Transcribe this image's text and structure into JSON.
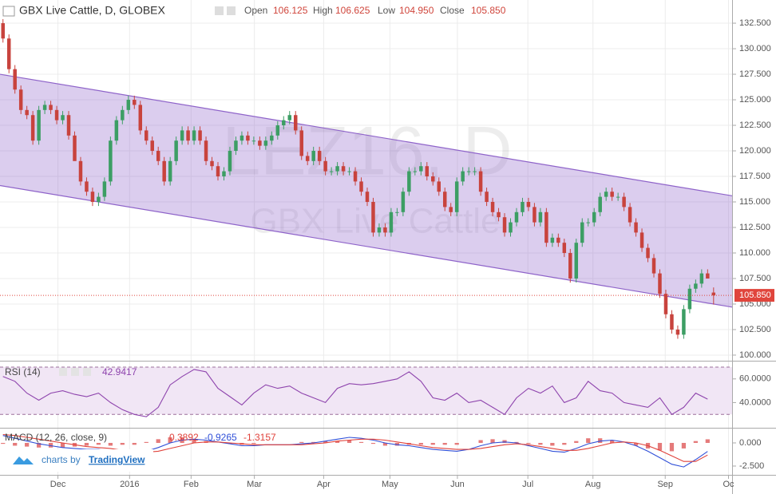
{
  "chart_data": [
    {
      "type": "candlestick",
      "title": "GBX Live Cattle, D, GLOBEX",
      "watermark": [
        "LEZ16, D",
        "GBX Live Cattle"
      ],
      "header_labels": [
        "Open",
        "High",
        "Low",
        "Close"
      ],
      "last_labels": [
        "106.125",
        "106.625",
        "104.950",
        "105.850"
      ],
      "up_color": "#3c9e64",
      "down_color": "#c8433d",
      "open": [
        132.5,
        131,
        128,
        126,
        124,
        123.5,
        121,
        124,
        124.5,
        124,
        123,
        123.5,
        121.5,
        119,
        117,
        116,
        115,
        115.5,
        117,
        121,
        123,
        124,
        125,
        124.5,
        122,
        121,
        120,
        119,
        117,
        119,
        121,
        122,
        121,
        122,
        121,
        119,
        118.5,
        117.5,
        118,
        120,
        121,
        121.5,
        121,
        121,
        120.5,
        121,
        121.5,
        122.5,
        123,
        123.5,
        122,
        119.5,
        119,
        120,
        119,
        118,
        118,
        118.5,
        118,
        118,
        117,
        116,
        115,
        112,
        112.5,
        112,
        114,
        114,
        116,
        118,
        118,
        118.5,
        117.5,
        117,
        116,
        114.5,
        114,
        117,
        118,
        118,
        118,
        116,
        115,
        114,
        113.5,
        112,
        113,
        114,
        115,
        114.5,
        113,
        114,
        111,
        111.5,
        111,
        110,
        107.5,
        111,
        113,
        113,
        114,
        115.5,
        116,
        115.5,
        115.5,
        114.5,
        113,
        112,
        110.5,
        109.5,
        108,
        106,
        104,
        102.5,
        102,
        104.5,
        106.5,
        107,
        108,
        106.125
      ],
      "high": [
        132.9,
        131.4,
        128.4,
        126.4,
        124.4,
        123.9,
        124.4,
        124.9,
        124.9,
        124.4,
        123.9,
        123.9,
        121.9,
        119.4,
        117.4,
        116.4,
        115.9,
        117.4,
        121.4,
        123.4,
        124.4,
        125.4,
        125.4,
        124.9,
        122.4,
        121.4,
        120.4,
        119.4,
        119.4,
        121.4,
        122.4,
        122.4,
        122.4,
        122.4,
        121.4,
        119.4,
        118.9,
        118.4,
        120.4,
        121.4,
        121.9,
        121.9,
        121.4,
        121.4,
        121.4,
        121.9,
        122.9,
        123.4,
        123.9,
        123.9,
        122.4,
        119.9,
        120.4,
        120.4,
        119.4,
        118.4,
        118.9,
        118.9,
        118.4,
        118.4,
        117.4,
        116.4,
        115.4,
        112.9,
        112.9,
        114.4,
        114.4,
        116.4,
        118.4,
        118.4,
        118.9,
        118.9,
        117.9,
        117.4,
        116.4,
        114.9,
        117.4,
        118.4,
        118.4,
        118.4,
        118.4,
        116.4,
        115.4,
        114.4,
        113.9,
        113.4,
        114.4,
        115.4,
        115.4,
        114.9,
        114.4,
        114.4,
        111.9,
        111.9,
        111.4,
        110.4,
        111.4,
        113.4,
        113.4,
        114.4,
        115.9,
        116.4,
        116.4,
        115.9,
        115.9,
        114.9,
        113.4,
        112.4,
        110.9,
        109.9,
        108.4,
        106.4,
        104.4,
        102.9,
        104.9,
        106.9,
        107.4,
        108.4,
        108.4,
        106.625
      ],
      "low": [
        130.6,
        127.6,
        125.6,
        123.6,
        123.1,
        120.6,
        120.6,
        123.6,
        123.6,
        122.6,
        122.6,
        121.1,
        119.1,
        116.6,
        115.6,
        114.6,
        114.6,
        115.1,
        116.6,
        120.6,
        122.6,
        123.6,
        124.1,
        121.6,
        120.6,
        119.6,
        118.6,
        116.6,
        116.6,
        118.6,
        120.6,
        120.6,
        120.6,
        120.6,
        118.6,
        118.1,
        117.1,
        117.1,
        117.6,
        119.6,
        120.6,
        120.6,
        120.6,
        120.1,
        120.1,
        120.6,
        121.1,
        122.1,
        122.6,
        121.6,
        119.1,
        118.6,
        118.6,
        118.6,
        117.6,
        117.6,
        117.6,
        117.6,
        117.6,
        116.6,
        115.6,
        114.6,
        111.6,
        111.6,
        111.6,
        111.6,
        113.6,
        113.6,
        115.6,
        117.6,
        117.6,
        117.1,
        116.6,
        115.6,
        114.1,
        113.6,
        113.6,
        116.6,
        117.6,
        117.6,
        115.6,
        114.6,
        113.6,
        113.1,
        111.6,
        111.6,
        112.6,
        113.6,
        114.1,
        112.6,
        112.6,
        110.6,
        110.6,
        110.6,
        109.6,
        107.1,
        107.1,
        110.6,
        112.6,
        112.6,
        113.6,
        115.1,
        115.1,
        115.1,
        114.1,
        112.6,
        111.6,
        110.1,
        109.1,
        107.6,
        105.6,
        103.6,
        102.1,
        101.6,
        101.6,
        104.1,
        106.1,
        106.6,
        107.6,
        104.95
      ],
      "close": [
        131,
        128,
        126,
        124,
        123.5,
        121,
        124,
        124.5,
        124,
        123,
        123.5,
        121.5,
        119,
        117,
        116,
        115,
        115.5,
        117,
        121,
        123,
        124,
        125,
        124.5,
        122,
        121,
        120,
        119,
        117,
        119,
        121,
        122,
        121,
        122,
        121,
        119,
        118.5,
        117.5,
        118,
        120,
        121,
        121.5,
        121,
        121,
        120.5,
        121,
        121.5,
        122.5,
        123,
        123.5,
        122,
        119.5,
        119,
        120,
        119,
        118,
        118,
        118.5,
        118,
        118,
        117,
        116,
        115,
        112,
        112.5,
        112,
        114,
        114,
        116,
        118,
        118,
        118.5,
        117.5,
        117,
        116,
        114.5,
        114,
        117,
        118,
        118,
        118,
        116,
        115,
        114,
        113.5,
        112,
        113,
        114,
        115,
        114.5,
        113,
        114,
        111,
        111.5,
        111,
        110,
        107.5,
        111,
        113,
        113,
        114,
        115.5,
        116,
        115.5,
        115.5,
        114.5,
        113,
        112,
        110.5,
        109.5,
        108,
        106,
        104,
        102.5,
        102,
        104.5,
        106.5,
        107,
        108,
        107.5,
        105.85
      ],
      "channel": {
        "x": [
          -0.5,
          122.1
        ],
        "upper": [
          127.5,
          115.6
        ],
        "lower": [
          116.6,
          104.7
        ],
        "color": "#8e63c9"
      },
      "last_price_color": "#e0453c",
      "xlim": [
        -0.5,
        122.1
      ],
      "xticks": [
        {
          "value": 9.2,
          "label": "Dec"
        },
        {
          "value": 21.2,
          "label": "2016"
        },
        {
          "value": 31.5,
          "label": "Feb"
        },
        {
          "value": 42.1,
          "label": "Mar"
        },
        {
          "value": 53.7,
          "label": "Apr"
        },
        {
          "value": 64.8,
          "label": "May"
        },
        {
          "value": 76.1,
          "label": "Jun"
        },
        {
          "value": 87.9,
          "label": "Jul"
        },
        {
          "value": 98.8,
          "label": "Aug"
        },
        {
          "value": 110.9,
          "label": "Sep"
        },
        {
          "value": 121.5,
          "label": "Oc"
        }
      ],
      "ylim": [
        99.45,
        134.77
      ],
      "yticks": [
        {
          "value": 100,
          "label": "100.000"
        },
        {
          "value": 102.5,
          "label": "102.500"
        },
        {
          "value": 105,
          "label": "105.000"
        },
        {
          "value": 107.5,
          "label": "107.500"
        },
        {
          "value": 110,
          "label": "110.000"
        },
        {
          "value": 112.5,
          "label": "112.500"
        },
        {
          "value": 115,
          "label": "115.000"
        },
        {
          "value": 117.5,
          "label": "117.500"
        },
        {
          "value": 120,
          "label": "120.000"
        },
        {
          "value": 122.5,
          "label": "122.500"
        },
        {
          "value": 125,
          "label": "125.000"
        },
        {
          "value": 127.5,
          "label": "127.500"
        },
        {
          "value": 130,
          "label": "130.000"
        },
        {
          "value": 132.5,
          "label": "132.500"
        }
      ],
      "grid": true
    },
    {
      "type": "line",
      "title": "RSI (14)",
      "x": [
        0,
        2,
        4,
        6,
        8,
        10,
        12,
        14,
        16,
        18,
        20,
        22,
        24,
        26,
        28,
        30,
        32,
        34,
        36,
        38,
        40,
        42,
        44,
        46,
        48,
        50,
        52,
        54,
        56,
        58,
        60,
        62,
        64,
        66,
        68,
        70,
        72,
        74,
        76,
        78,
        80,
        82,
        84,
        86,
        88,
        90,
        92,
        94,
        96,
        98,
        100,
        102,
        104,
        106,
        108,
        110,
        112,
        114,
        116,
        118
      ],
      "series": [
        {
          "name": "RSI",
          "color": "#8e44ad",
          "values": [
            62,
            58,
            48,
            42,
            48,
            50,
            47,
            45,
            48,
            40,
            34,
            30,
            28,
            36,
            55,
            62,
            68,
            66,
            52,
            45,
            38,
            48,
            55,
            52,
            54,
            48,
            44,
            40,
            52,
            56,
            55,
            56,
            58,
            60,
            66,
            58,
            44,
            42,
            48,
            40,
            42,
            36,
            30,
            44,
            52,
            48,
            54,
            40,
            44,
            58,
            50,
            48,
            40,
            38,
            36,
            44,
            30,
            36,
            48,
            42.9417
          ]
        }
      ],
      "bands": [
        30,
        70
      ],
      "band_color": "#f1e6f5",
      "xlim": [
        -0.5,
        122.1
      ],
      "ylim": [
        18.7,
        74.7
      ],
      "yticks": [
        {
          "value": 40,
          "label": "40.0000"
        },
        {
          "value": 60,
          "label": "60.0000"
        }
      ]
    },
    {
      "type": "macd",
      "title": "MACD (12, 26, close, 9)",
      "x": [
        0,
        2,
        4,
        6,
        8,
        10,
        12,
        14,
        16,
        18,
        20,
        22,
        24,
        26,
        28,
        30,
        32,
        34,
        36,
        38,
        40,
        42,
        44,
        46,
        48,
        50,
        52,
        54,
        56,
        58,
        60,
        62,
        64,
        66,
        68,
        70,
        72,
        74,
        76,
        78,
        80,
        82,
        84,
        86,
        88,
        90,
        92,
        94,
        96,
        98,
        100,
        102,
        104,
        106,
        108,
        110,
        112,
        114,
        116,
        118
      ],
      "series": [
        {
          "name": "Histogram",
          "color": "#e57a7a",
          "values": [
            -0.1,
            -0.3,
            -0.4,
            -0.5,
            -0.5,
            -0.5,
            -0.4,
            -0.3,
            -0.2,
            -0.3,
            -0.2,
            -0.2,
            0.1,
            0.4,
            0.6,
            0.6,
            0.4,
            0.2,
            0,
            -0.1,
            -0.2,
            -0.1,
            0,
            0,
            0,
            0.1,
            0.1,
            0.2,
            0.2,
            0.3,
            0.1,
            -0.1,
            -0.3,
            -0.3,
            -0.2,
            -0.2,
            -0.2,
            -0.2,
            -0.2,
            0,
            0.3,
            0.4,
            0.3,
            0.1,
            -0.1,
            -0.2,
            -0.3,
            -0.2,
            0.2,
            0.5,
            0.5,
            0.3,
            0,
            -0.3,
            -0.6,
            -0.8,
            -0.9,
            -0.6,
            0.2,
            0.3892
          ]
        },
        {
          "name": "MACD",
          "color": "#2f4fd8",
          "values": [
            0.8,
            0.5,
            0.2,
            -0.1,
            -0.3,
            -0.5,
            -0.6,
            -0.7,
            -0.7,
            -0.9,
            -1.0,
            -1.1,
            -0.9,
            -0.5,
            0,
            0.3,
            0.4,
            0.3,
            0.1,
            -0.1,
            -0.3,
            -0.3,
            -0.2,
            -0.2,
            -0.2,
            -0.1,
            0,
            0.2,
            0.4,
            0.6,
            0.5,
            0.3,
            0,
            -0.2,
            -0.3,
            -0.5,
            -0.7,
            -0.8,
            -0.9,
            -0.7,
            -0.3,
            0,
            0.1,
            0,
            -0.3,
            -0.6,
            -0.9,
            -1.0,
            -0.6,
            -0.1,
            0.2,
            0.3,
            0.1,
            -0.3,
            -0.9,
            -1.6,
            -2.3,
            -2.6,
            -1.8,
            -0.9265
          ]
        },
        {
          "name": "Signal",
          "color": "#e0413a",
          "values": [
            0.9,
            0.8,
            0.6,
            0.4,
            0.2,
            0,
            -0.2,
            -0.4,
            -0.5,
            -0.6,
            -0.8,
            -0.9,
            -1.0,
            -0.9,
            -0.6,
            -0.3,
            0,
            0.1,
            0.1,
            0,
            -0.1,
            -0.2,
            -0.2,
            -0.2,
            -0.2,
            -0.2,
            -0.1,
            0,
            0.2,
            0.3,
            0.4,
            0.4,
            0.3,
            0.1,
            -0.1,
            -0.3,
            -0.5,
            -0.6,
            -0.7,
            -0.7,
            -0.6,
            -0.4,
            -0.2,
            -0.1,
            -0.2,
            -0.4,
            -0.6,
            -0.8,
            -0.8,
            -0.6,
            -0.3,
            0,
            0.1,
            0,
            -0.3,
            -0.8,
            -1.4,
            -2.0,
            -2.0,
            -1.3157
          ]
        }
      ],
      "xlim": [
        -0.5,
        122.1
      ],
      "ylim": [
        -3.45,
        1.55
      ],
      "yticks": [
        {
          "value": -2.5,
          "label": "-2.500"
        },
        {
          "value": 0,
          "label": "0.000"
        }
      ]
    }
  ],
  "branding": {
    "text": "charts by",
    "link": "TradingView"
  }
}
